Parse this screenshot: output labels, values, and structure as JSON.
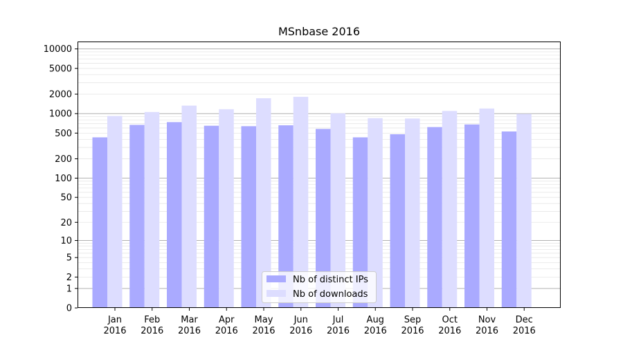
{
  "chart_data": {
    "type": "bar",
    "title": "MSnbase 2016",
    "xlabel": "",
    "ylabel": "",
    "yscale": "symlog",
    "ylim": [
      0,
      13000
    ],
    "yticks": [
      0,
      1,
      2,
      5,
      10,
      20,
      50,
      100,
      200,
      500,
      1000,
      2000,
      5000,
      10000
    ],
    "grid": true,
    "legend_position": "lower-center",
    "categories": [
      "Jan\n2016",
      "Feb\n2016",
      "Mar\n2016",
      "Apr\n2016",
      "May\n2016",
      "Jun\n2016",
      "Jul\n2016",
      "Aug\n2016",
      "Sep\n2016",
      "Oct\n2016",
      "Nov\n2016",
      "Dec\n2016"
    ],
    "series": [
      {
        "name": "Nb of distinct IPs",
        "color": "#aaaaff",
        "values": [
          430,
          670,
          740,
          650,
          640,
          660,
          580,
          430,
          480,
          620,
          680,
          530
        ]
      },
      {
        "name": "Nb of downloads",
        "color": "#ddddff",
        "values": [
          920,
          1060,
          1330,
          1170,
          1730,
          1820,
          1010,
          850,
          840,
          1100,
          1200,
          990
        ]
      }
    ]
  }
}
